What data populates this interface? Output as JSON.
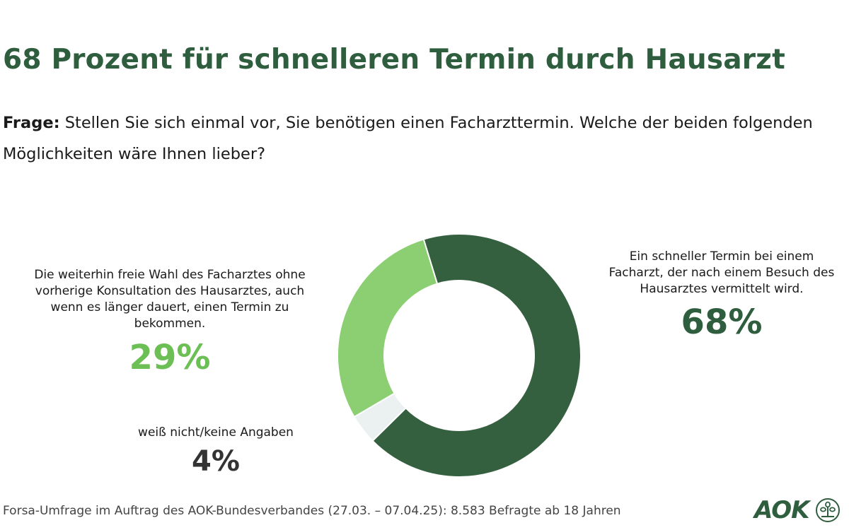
{
  "title": "68 Prozent für schnelleren Termin durch Hausarzt",
  "question": {
    "label": "Frage:",
    "text": "Stellen Sie sich einmal vor, Sie benötigen einen Facharzttermin. Welche der beiden folgenden Möglichkeiten wäre Ihnen lieber?"
  },
  "chart_data": {
    "type": "pie",
    "donut": true,
    "slices": [
      {
        "label": "Ein schneller Termin bei einem Facharzt, der nach einem Besuch des Hausarztes vermittelt wird.",
        "value": 68,
        "display": "68%",
        "color": "#35603f"
      },
      {
        "label": "weiß nicht/keine Angaben",
        "value": 4,
        "display": "4%",
        "color": "#eaf1f0"
      },
      {
        "label": "Die weiterhin freie Wahl des Facharztes ohne vorherige Konsultation des Hausarztes, auch wenn es länger dauert, einen Termin zu bekommen.",
        "value": 29,
        "display": "29%",
        "color": "#8bcf72"
      }
    ]
  },
  "colors": {
    "dark_green": "#2f5e3f",
    "light_green": "#6cbf55",
    "text_dark": "#333333"
  },
  "footer": "Forsa-Umfrage im Auftrag des AOK-Bundesverbandes (27.03. – 07.04.25): 8.583 Befragte ab 18 Jahren",
  "logo": {
    "text": "AOK",
    "icon": "tree-in-circle-icon"
  }
}
